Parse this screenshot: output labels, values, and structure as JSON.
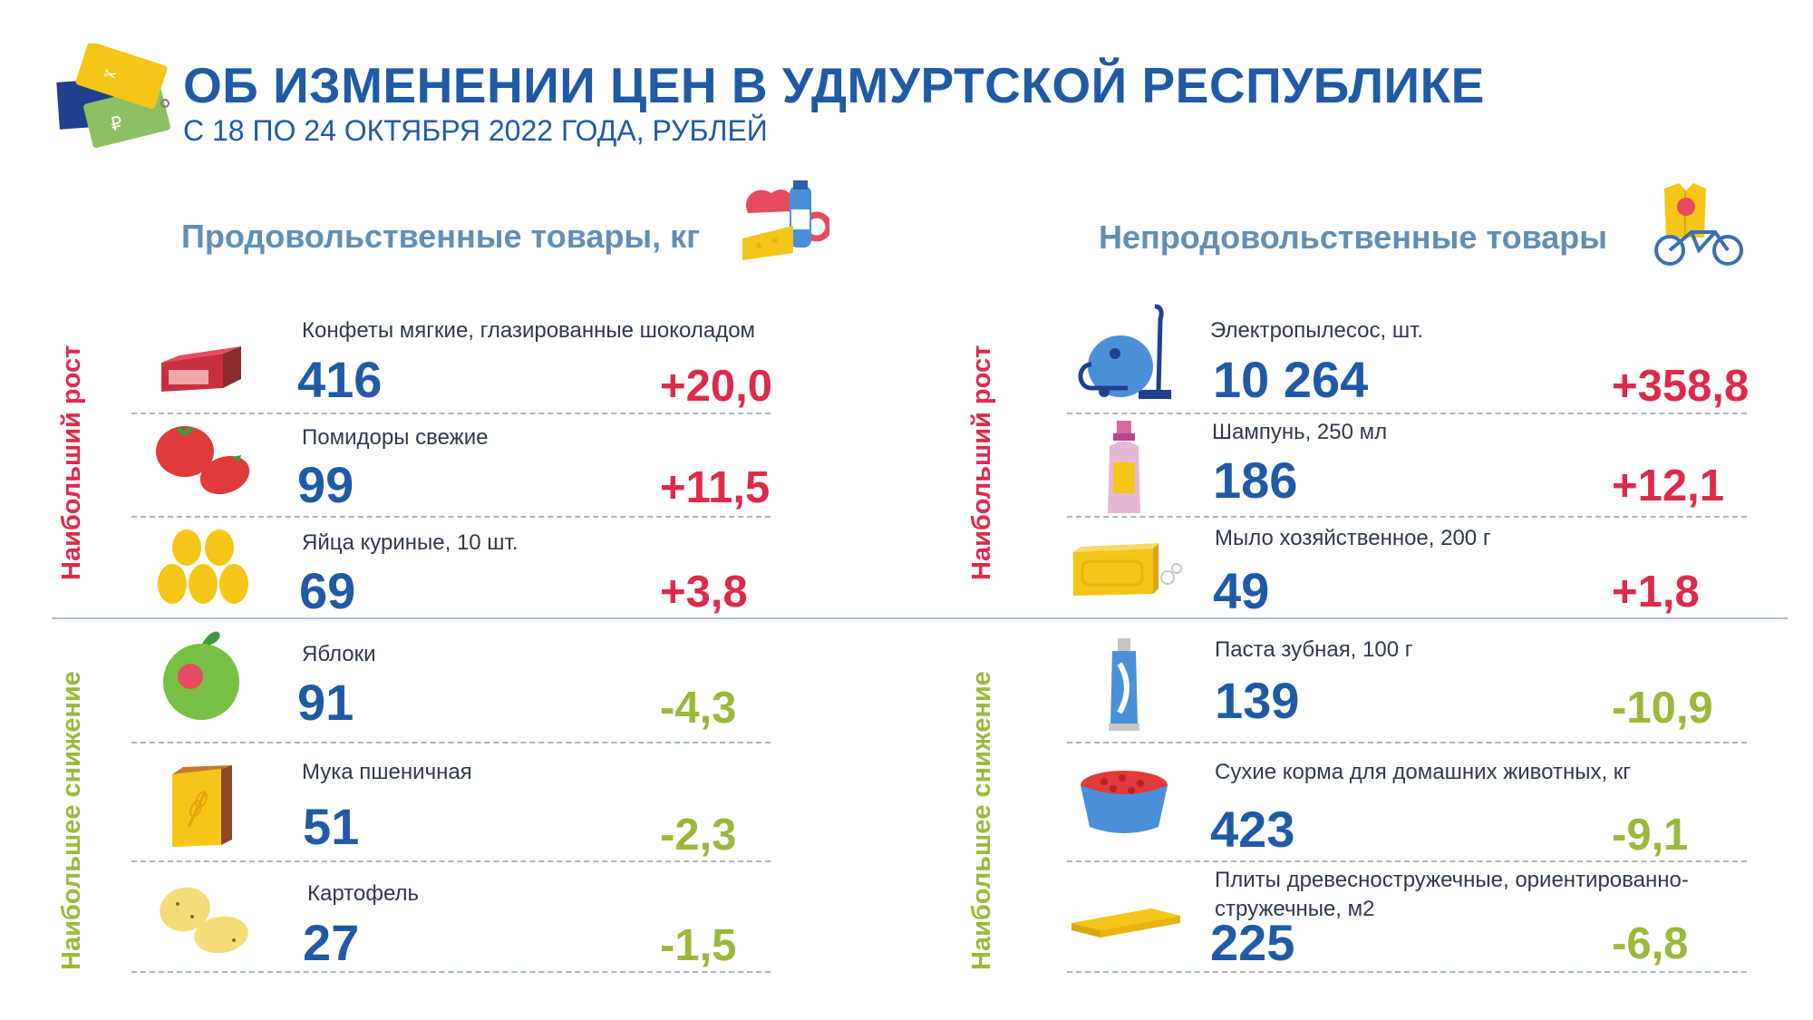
{
  "header": {
    "title": "ОБ ИЗМЕНЕНИИ ЦЕН В УДМУРТСКОЙ РЕСПУБЛИКЕ",
    "subtitle": "С 18 ПО 24 ОКТЯБРЯ 2022 ГОДА, РУБЛЕЙ",
    "logo_icon": "price-tags-icon"
  },
  "colors": {
    "title": "#1f5aa5",
    "price": "#1f5aa5",
    "increase": "#dd2a4b",
    "decrease": "#9bb83c",
    "section": "#5f8fb5"
  },
  "food": {
    "title": "Продовольственные товары, кг",
    "icon": "groceries-icon",
    "growth_label": "Наибольший рост",
    "decline_label": "Наибольшее снижение",
    "items": [
      {
        "name": "Конфеты мягкие, глазированные шоколадом",
        "price": "416",
        "change": "+20,0",
        "icon": "candy-bar-icon"
      },
      {
        "name": "Помидоры свежие",
        "price": "99",
        "change": "+11,5",
        "icon": "tomato-icon"
      },
      {
        "name": "Яйца куриные, 10 шт.",
        "price": "69",
        "change": "+3,8",
        "icon": "eggs-icon"
      },
      {
        "name": "Яблоки",
        "price": "91",
        "change": "-4,3",
        "icon": "apple-icon"
      },
      {
        "name": "Мука пшеничная",
        "price": "51",
        "change": "-2,3",
        "icon": "flour-bag-icon"
      },
      {
        "name": "Картофель",
        "price": "27",
        "change": "-1,5",
        "icon": "potato-icon"
      }
    ]
  },
  "nonfood": {
    "title": "Непродовольственные товары",
    "icon": "clothes-bicycle-icon",
    "growth_label": "Наибольший рост",
    "decline_label": "Наибольшее снижение",
    "items": [
      {
        "name": "Электропылесос, шт.",
        "price": "10 264",
        "change": "+358,8",
        "icon": "vacuum-cleaner-icon"
      },
      {
        "name": "Шампунь, 250 мл",
        "price": "186",
        "change": "+12,1",
        "icon": "shampoo-bottle-icon"
      },
      {
        "name": "Мыло хозяйственное, 200 г",
        "price": "49",
        "change": "+1,8",
        "icon": "soap-bar-icon"
      },
      {
        "name": "Паста зубная, 100 г",
        "price": "139",
        "change": "-10,9",
        "icon": "toothpaste-icon"
      },
      {
        "name": "Сухие корма для домашних животных, кг",
        "price": "423",
        "change": "-9,1",
        "icon": "pet-food-bowl-icon"
      },
      {
        "name": "Плиты древесностружечные, ориентированно-",
        "name2": "стружечные, м2",
        "price": "225",
        "change": "-6,8",
        "icon": "chipboard-icon"
      }
    ]
  }
}
